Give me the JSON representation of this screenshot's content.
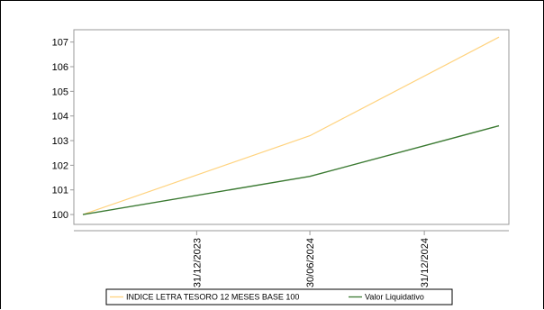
{
  "chart_data": {
    "type": "line",
    "x": [
      "2023-07-01",
      "2023-12-31",
      "2024-06-30",
      "2024-12-31",
      "2025-04-30"
    ],
    "x_tick_labels": [
      "31/12/2023",
      "30/06/2024",
      "31/12/2024"
    ],
    "x_tick_dates": [
      "2023-12-31",
      "2024-06-30",
      "2024-12-31"
    ],
    "xlim": [
      "2023-07-01",
      "2025-04-30"
    ],
    "ylim": [
      99.6,
      107.5
    ],
    "y_ticks": [
      100,
      101,
      102,
      103,
      104,
      105,
      106,
      107
    ],
    "series": [
      {
        "name": "INDICE LETRA TESORO 12 MESES BASE 100",
        "color": "#ffd37f",
        "values": [
          100,
          null,
          103.2,
          null,
          107.2
        ]
      },
      {
        "name": "Valor Liquidativo",
        "color": "#3b7a32",
        "values": [
          100,
          null,
          101.55,
          null,
          103.6
        ]
      }
    ],
    "title": "",
    "xlabel": "",
    "ylabel": "",
    "grid": false,
    "legend_position": "bottom"
  }
}
